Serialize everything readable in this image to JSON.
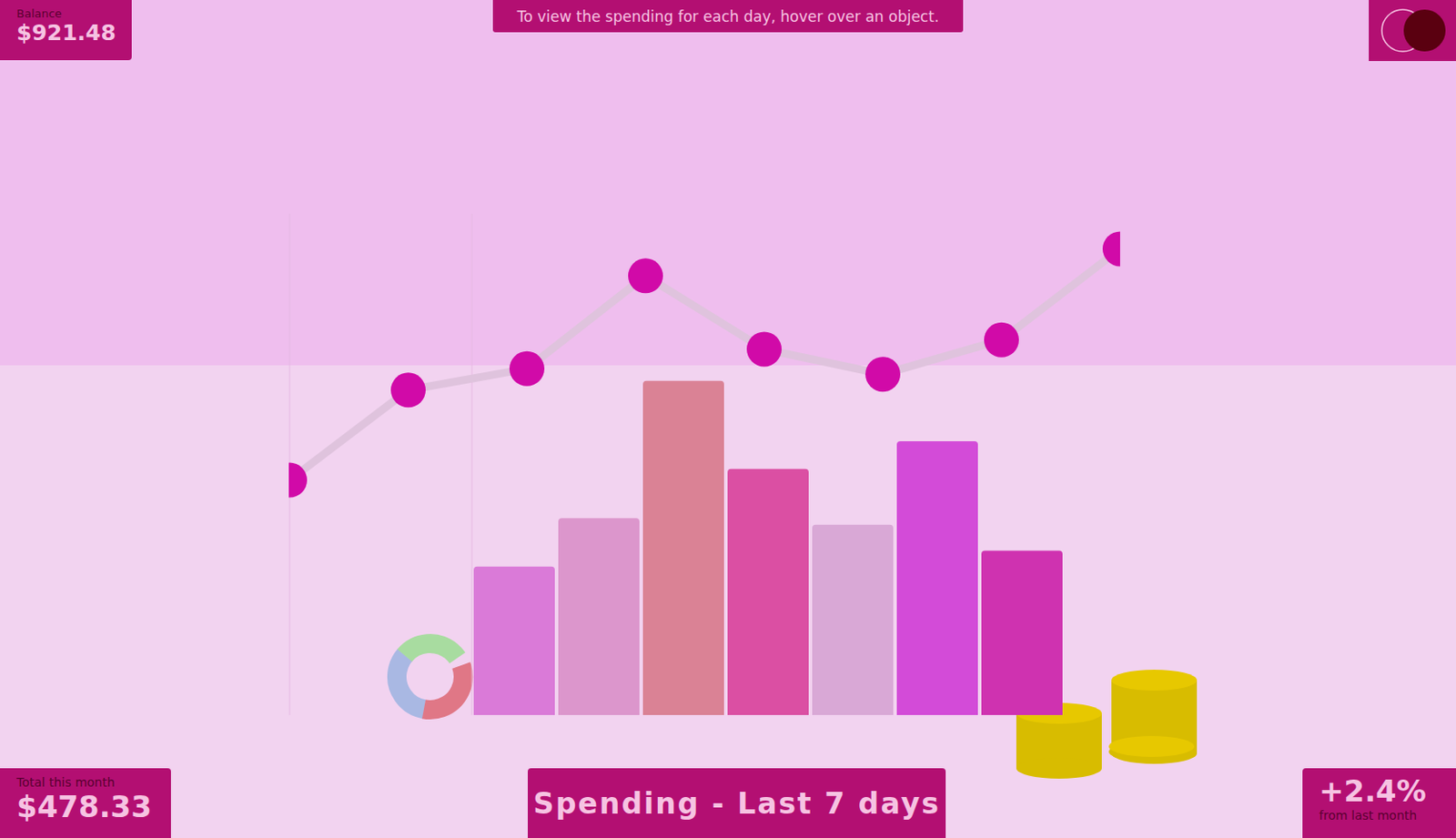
{
  "chart_data": [
    {
      "type": "bar",
      "title": "Spending - Last 7 days",
      "categories": [
        null,
        null,
        null,
        null,
        null,
        null,
        null
      ],
      "values": [
        160,
        212,
        360,
        265,
        205,
        295,
        177
      ],
      "colors": [
        "#da7ad8",
        "#dc96cc",
        "#da8295",
        "#db4fa3",
        "#d9a8d6",
        "#d34bd8",
        "#cf32b0"
      ],
      "ylim": [
        0,
        540
      ],
      "tick_labels": false,
      "annotations": [
        "To view the spending for each day, hover over an object.",
        "Balance",
        "$921.48",
        "Total this month",
        "$478.33",
        "+2.4%",
        "from last month"
      ]
    },
    {
      "type": "line",
      "categories": [
        null,
        null,
        null,
        null,
        null,
        null,
        null,
        null
      ],
      "values": [
        253,
        350,
        373,
        473,
        394,
        367,
        404,
        502
      ],
      "color": "#dfc3dd",
      "marker": "circle",
      "ylim": [
        0,
        540
      ],
      "tick_labels": false
    }
  ]
}
